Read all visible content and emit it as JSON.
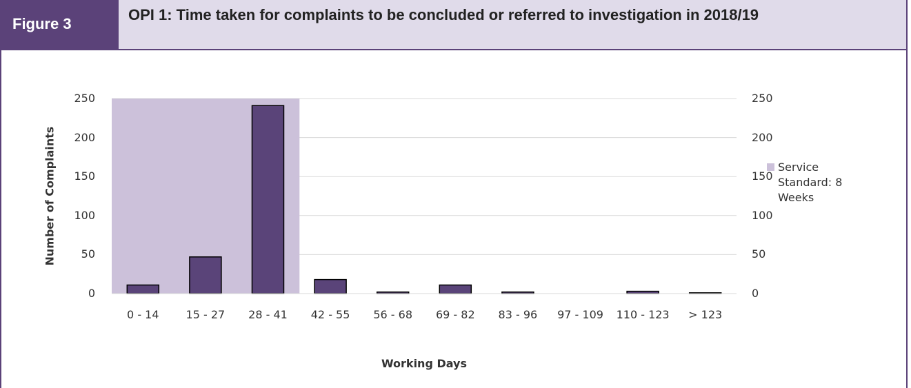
{
  "header": {
    "label": "Figure 3",
    "title": "OPI 1: Time taken for complaints to be concluded or referred to investigation in 2018/19"
  },
  "chart_data": {
    "type": "bar",
    "categories": [
      "0 - 14",
      "15 - 27",
      "28 - 41",
      "42 - 55",
      "56 - 68",
      "69 - 82",
      "83 - 96",
      "97 - 109",
      "110 - 123",
      "> 123"
    ],
    "series": [
      {
        "color": "#5a4479",
        "values": [
          11,
          47,
          241,
          18,
          2,
          11,
          2,
          0,
          3,
          1
        ]
      },
      {
        "name": "Service Standard: 8 Weeks",
        "color": "#ccc1da",
        "axis": "y2",
        "values": [
          250,
          250,
          250,
          null,
          null,
          null,
          null,
          null,
          null,
          null
        ]
      }
    ],
    "xlabel": "Working Days",
    "ylabel": "Number of Complaints",
    "ylim": [
      0,
      250
    ],
    "yticks": [
      0,
      50,
      100,
      150,
      200,
      250
    ],
    "y2lim": [
      0,
      250
    ],
    "y2ticks": [
      0,
      50,
      100,
      150,
      200,
      250
    ],
    "grid": true,
    "legend": "right"
  }
}
